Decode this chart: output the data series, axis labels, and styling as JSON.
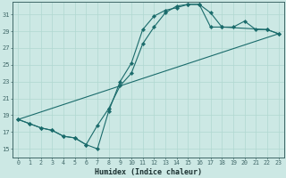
{
  "xlabel": "Humidex (Indice chaleur)",
  "xlim": [
    -0.5,
    23.5
  ],
  "ylim": [
    14.0,
    32.5
  ],
  "yticks": [
    15,
    17,
    19,
    21,
    23,
    25,
    27,
    29,
    31
  ],
  "xticks": [
    0,
    1,
    2,
    3,
    4,
    5,
    6,
    7,
    8,
    9,
    10,
    11,
    12,
    13,
    14,
    15,
    16,
    17,
    18,
    19,
    20,
    21,
    22,
    23
  ],
  "bg_color": "#cce8e4",
  "grid_color": "#b0d8d0",
  "line_color": "#1a6b6b",
  "line1_x": [
    0,
    1,
    2,
    3,
    4,
    5,
    6,
    7,
    8,
    9,
    10,
    11,
    12,
    13,
    14,
    15,
    16,
    17,
    18,
    19,
    20,
    21,
    22,
    23
  ],
  "line1_y": [
    18.5,
    18.0,
    17.5,
    17.2,
    16.5,
    16.3,
    15.5,
    15.0,
    19.5,
    23.0,
    25.2,
    29.2,
    30.8,
    31.5,
    31.8,
    32.2,
    32.2,
    31.2,
    29.5,
    29.5,
    30.2,
    29.2,
    29.2,
    28.7
  ],
  "line2_x": [
    0,
    1,
    2,
    3,
    4,
    5,
    6,
    7,
    8,
    9,
    10,
    11,
    12,
    13,
    14,
    15,
    16,
    17,
    18,
    22,
    23
  ],
  "line2_y": [
    18.5,
    18.0,
    17.5,
    17.2,
    16.5,
    16.3,
    15.5,
    17.8,
    19.8,
    22.5,
    24.0,
    27.5,
    29.5,
    31.2,
    32.0,
    32.2,
    32.2,
    29.5,
    29.5,
    29.2,
    28.7
  ],
  "line3_x": [
    0,
    23
  ],
  "line3_y": [
    18.5,
    28.7
  ]
}
